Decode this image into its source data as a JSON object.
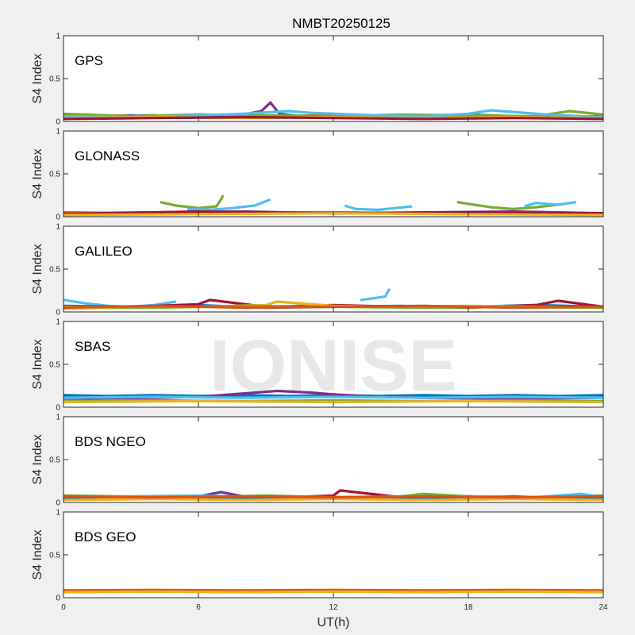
{
  "figure": {
    "title": "NMBT20250125",
    "xlabel": "UT(h)",
    "watermark": "IONISE"
  },
  "chart_data": {
    "type": "line",
    "xlim": [
      0,
      24
    ],
    "ylim": [
      0,
      1
    ],
    "xticks": [
      0,
      6,
      12,
      18,
      24
    ],
    "yticks": [
      0,
      0.5,
      1
    ],
    "ylabel": "S4 Index",
    "colors": [
      "#0072BD",
      "#D95319",
      "#EDB120",
      "#7E2F8E",
      "#77AC30",
      "#4DBEEE",
      "#A2142F"
    ],
    "panels": [
      {
        "label": "GPS",
        "series": [
          {
            "color_index": 3,
            "x": [
              0.0,
              1.0,
              2.0,
              3.0,
              4.0,
              5.0,
              6.0,
              7.0,
              8.0,
              8.8,
              9.2,
              9.6,
              10.5,
              12.0,
              14.0,
              16.0,
              18.0,
              20.0,
              22.0,
              23.0,
              24.0
            ],
            "y": [
              0.07,
              0.08,
              0.06,
              0.07,
              0.05,
              0.06,
              0.07,
              0.06,
              0.08,
              0.12,
              0.22,
              0.09,
              0.06,
              0.05,
              0.06,
              0.05,
              0.04,
              0.05,
              0.07,
              0.06,
              0.05
            ]
          },
          {
            "color_index": 1,
            "x": [
              0.0,
              2.0,
              4.0,
              6.0,
              8.0,
              10.0,
              12.0,
              14.0,
              16.0,
              18.0,
              20.0,
              22.0,
              24.0
            ],
            "y": [
              0.06,
              0.07,
              0.06,
              0.08,
              0.07,
              0.06,
              0.08,
              0.06,
              0.05,
              0.06,
              0.05,
              0.06,
              0.05
            ]
          },
          {
            "color_index": 0,
            "x": [
              0.0,
              2.0,
              4.0,
              6.0,
              8.0,
              10.0,
              12.0,
              14.0,
              16.0,
              18.0,
              20.0,
              22.0,
              24.0
            ],
            "y": [
              0.05,
              0.06,
              0.07,
              0.05,
              0.06,
              0.07,
              0.05,
              0.06,
              0.07,
              0.08,
              0.06,
              0.05,
              0.06
            ]
          },
          {
            "color_index": 4,
            "x": [
              0.0,
              3.0,
              6.0,
              9.0,
              12.0,
              15.0,
              18.0,
              21.0,
              22.5,
              24.0
            ],
            "y": [
              0.09,
              0.06,
              0.08,
              0.07,
              0.06,
              0.08,
              0.07,
              0.06,
              0.12,
              0.08
            ]
          },
          {
            "color_index": 5,
            "x": [
              0.0,
              3.0,
              6.0,
              8.0,
              10.0,
              11.0,
              14.0,
              16.0,
              18.0,
              19.0,
              22.0,
              24.0
            ],
            "y": [
              0.06,
              0.05,
              0.07,
              0.09,
              0.12,
              0.1,
              0.07,
              0.06,
              0.09,
              0.13,
              0.07,
              0.05
            ]
          },
          {
            "color_index": 2,
            "x": [
              0.0,
              4.0,
              8.0,
              12.0,
              16.0,
              20.0,
              24.0
            ],
            "y": [
              0.04,
              0.05,
              0.04,
              0.05,
              0.04,
              0.05,
              0.04
            ]
          },
          {
            "color_index": 6,
            "x": [
              0.0,
              4.0,
              8.0,
              12.0,
              16.0,
              20.0,
              24.0
            ],
            "y": [
              0.03,
              0.04,
              0.05,
              0.04,
              0.03,
              0.04,
              0.03
            ]
          }
        ]
      },
      {
        "label": "GLONASS",
        "series": [
          {
            "color_index": 4,
            "x": [
              4.3,
              5.0,
              6.0,
              6.8,
              7.0,
              7.1
            ],
            "y": [
              0.17,
              0.13,
              0.1,
              0.12,
              0.2,
              0.25
            ]
          },
          {
            "color_index": 4,
            "x": [
              17.5,
              18.0,
              19.0,
              20.0,
              21.0,
              22.3
            ],
            "y": [
              0.17,
              0.15,
              0.11,
              0.09,
              0.11,
              0.15
            ]
          },
          {
            "color_index": 5,
            "x": [
              5.5,
              6.5,
              7.5,
              8.5,
              9.2
            ],
            "y": [
              0.09,
              0.08,
              0.1,
              0.13,
              0.2
            ]
          },
          {
            "color_index": 5,
            "x": [
              12.5,
              13.0,
              14.0,
              15.5
            ],
            "y": [
              0.13,
              0.09,
              0.08,
              0.12
            ]
          },
          {
            "color_index": 5,
            "x": [
              20.5,
              21.0,
              22.0,
              22.8
            ],
            "y": [
              0.12,
              0.16,
              0.14,
              0.17
            ]
          },
          {
            "color_index": 0,
            "x": [
              0.0,
              3.0,
              6.0,
              9.0,
              12.0,
              15.0,
              18.0,
              21.0,
              24.0
            ],
            "y": [
              0.03,
              0.04,
              0.05,
              0.04,
              0.05,
              0.04,
              0.05,
              0.04,
              0.03
            ]
          },
          {
            "color_index": 3,
            "x": [
              0.0,
              4.0,
              8.0,
              12.0,
              16.0,
              20.0,
              24.0
            ],
            "y": [
              0.04,
              0.05,
              0.06,
              0.04,
              0.05,
              0.06,
              0.04
            ]
          },
          {
            "color_index": 1,
            "x": [
              0.0,
              4.0,
              8.0,
              12.0,
              16.0,
              20.0,
              24.0
            ],
            "y": [
              0.05,
              0.04,
              0.05,
              0.05,
              0.04,
              0.05,
              0.04
            ]
          },
          {
            "color_index": 6,
            "x": [
              0.0,
              6.0,
              12.0,
              18.0,
              24.0
            ],
            "y": [
              0.03,
              0.06,
              0.04,
              0.05,
              0.04
            ]
          },
          {
            "color_index": 2,
            "x": [
              0.0,
              6.0,
              12.0,
              18.0,
              24.0
            ],
            "y": [
              0.02,
              0.03,
              0.04,
              0.03,
              0.02
            ]
          }
        ]
      },
      {
        "label": "GALILEO",
        "series": [
          {
            "color_index": 5,
            "x": [
              0.0,
              1.0,
              2.0,
              3.0,
              4.0,
              5.0
            ],
            "y": [
              0.14,
              0.1,
              0.07,
              0.06,
              0.08,
              0.12
            ]
          },
          {
            "color_index": 5,
            "x": [
              13.2,
              13.8,
              14.3,
              14.5
            ],
            "y": [
              0.14,
              0.16,
              0.18,
              0.27
            ]
          },
          {
            "color_index": 0,
            "x": [
              0.0,
              3.0,
              6.0,
              9.0,
              12.0,
              15.0,
              18.0,
              21.0,
              24.0
            ],
            "y": [
              0.07,
              0.06,
              0.08,
              0.05,
              0.06,
              0.07,
              0.06,
              0.08,
              0.06
            ]
          },
          {
            "color_index": 6,
            "x": [
              0.0,
              3.0,
              6.0,
              6.5,
              9.0,
              12.0,
              15.0,
              18.0,
              21.0,
              22.0,
              24.0
            ],
            "y": [
              0.05,
              0.06,
              0.09,
              0.14,
              0.06,
              0.08,
              0.06,
              0.05,
              0.08,
              0.13,
              0.06
            ]
          },
          {
            "color_index": 2,
            "x": [
              0.0,
              3.0,
              6.0,
              9.0,
              9.5,
              12.0,
              15.0,
              18.0,
              24.0
            ],
            "y": [
              0.04,
              0.05,
              0.06,
              0.08,
              0.12,
              0.07,
              0.06,
              0.07,
              0.05
            ]
          },
          {
            "color_index": 4,
            "x": [
              0.0,
              4.0,
              8.0,
              12.0,
              16.0,
              20.0,
              24.0
            ],
            "y": [
              0.06,
              0.05,
              0.07,
              0.06,
              0.05,
              0.06,
              0.05
            ]
          },
          {
            "color_index": 1,
            "x": [
              0.0,
              4.0,
              8.0,
              12.0,
              16.0,
              20.0,
              24.0
            ],
            "y": [
              0.05,
              0.07,
              0.05,
              0.06,
              0.07,
              0.05,
              0.06
            ]
          }
        ]
      },
      {
        "label": "SBAS",
        "series": [
          {
            "color_index": 0,
            "x": [
              0.0,
              2.0,
              4.0,
              6.0,
              8.0,
              10.0,
              12.0,
              14.0,
              16.0,
              18.0,
              20.0,
              22.0,
              24.0
            ],
            "y": [
              0.14,
              0.13,
              0.14,
              0.13,
              0.14,
              0.13,
              0.14,
              0.13,
              0.14,
              0.13,
              0.14,
              0.13,
              0.14
            ]
          },
          {
            "color_index": 3,
            "x": [
              0.0,
              4.0,
              6.0,
              8.0,
              9.5,
              11.0,
              12.0,
              14.0,
              16.0,
              20.0,
              24.0
            ],
            "y": [
              0.1,
              0.11,
              0.12,
              0.16,
              0.19,
              0.17,
              0.15,
              0.12,
              0.11,
              0.1,
              0.11
            ]
          },
          {
            "color_index": 4,
            "x": [
              0.0,
              4.0,
              8.0,
              12.0,
              16.0,
              20.0,
              24.0
            ],
            "y": [
              0.07,
              0.08,
              0.07,
              0.08,
              0.07,
              0.08,
              0.07
            ]
          },
          {
            "color_index": 5,
            "x": [
              0.0,
              4.0,
              8.0,
              12.0,
              16.0,
              20.0,
              24.0
            ],
            "y": [
              0.11,
              0.12,
              0.11,
              0.12,
              0.11,
              0.12,
              0.11
            ]
          },
          {
            "color_index": 2,
            "x": [
              0.0,
              6.0,
              12.0,
              18.0,
              24.0
            ],
            "y": [
              0.06,
              0.07,
              0.06,
              0.07,
              0.06
            ]
          }
        ]
      },
      {
        "label": "BDS NGEO",
        "series": [
          {
            "color_index": 3,
            "x": [
              0.0,
              2.0,
              4.0,
              6.0,
              7.0,
              8.0,
              10.0,
              12.0,
              14.0,
              16.0,
              18.0,
              20.0,
              22.0,
              24.0
            ],
            "y": [
              0.05,
              0.06,
              0.05,
              0.07,
              0.12,
              0.07,
              0.06,
              0.05,
              0.06,
              0.05,
              0.06,
              0.07,
              0.05,
              0.04
            ]
          },
          {
            "color_index": 6,
            "x": [
              0.0,
              3.0,
              6.0,
              9.0,
              12.0,
              12.3,
              15.0,
              18.0,
              21.0,
              24.0
            ],
            "y": [
              0.04,
              0.05,
              0.06,
              0.05,
              0.08,
              0.14,
              0.06,
              0.07,
              0.05,
              0.04
            ]
          },
          {
            "color_index": 4,
            "x": [
              0.0,
              3.0,
              6.0,
              9.0,
              12.0,
              15.0,
              16.0,
              18.0,
              21.0,
              24.0
            ],
            "y": [
              0.08,
              0.07,
              0.06,
              0.08,
              0.06,
              0.07,
              0.1,
              0.07,
              0.06,
              0.08
            ]
          },
          {
            "color_index": 5,
            "x": [
              0.0,
              3.0,
              6.0,
              9.0,
              12.0,
              15.0,
              18.0,
              21.0,
              23.0,
              24.0
            ],
            "y": [
              0.06,
              0.07,
              0.08,
              0.06,
              0.05,
              0.06,
              0.07,
              0.06,
              0.1,
              0.06
            ]
          },
          {
            "color_index": 0,
            "x": [
              0.0,
              4.0,
              8.0,
              12.0,
              16.0,
              20.0,
              24.0
            ],
            "y": [
              0.05,
              0.06,
              0.05,
              0.06,
              0.05,
              0.06,
              0.05
            ]
          },
          {
            "color_index": 2,
            "x": [
              0.0,
              4.0,
              8.0,
              12.0,
              16.0,
              20.0,
              24.0
            ],
            "y": [
              0.03,
              0.04,
              0.03,
              0.04,
              0.03,
              0.04,
              0.03
            ]
          },
          {
            "color_index": 1,
            "x": [
              0.0,
              4.0,
              8.0,
              12.0,
              16.0,
              20.0,
              24.0
            ],
            "y": [
              0.07,
              0.06,
              0.07,
              0.06,
              0.07,
              0.06,
              0.07
            ]
          }
        ]
      },
      {
        "label": "BDS GEO",
        "series": [
          {
            "color_index": 1,
            "x": [
              0.0,
              4.0,
              8.0,
              12.0,
              16.0,
              20.0,
              24.0
            ],
            "y": [
              0.085,
              0.09,
              0.085,
              0.09,
              0.085,
              0.09,
              0.085
            ]
          },
          {
            "color_index": 2,
            "x": [
              0.0,
              4.0,
              8.0,
              12.0,
              16.0,
              20.0,
              24.0
            ],
            "y": [
              0.065,
              0.07,
              0.065,
              0.07,
              0.065,
              0.07,
              0.065
            ]
          }
        ]
      }
    ]
  }
}
